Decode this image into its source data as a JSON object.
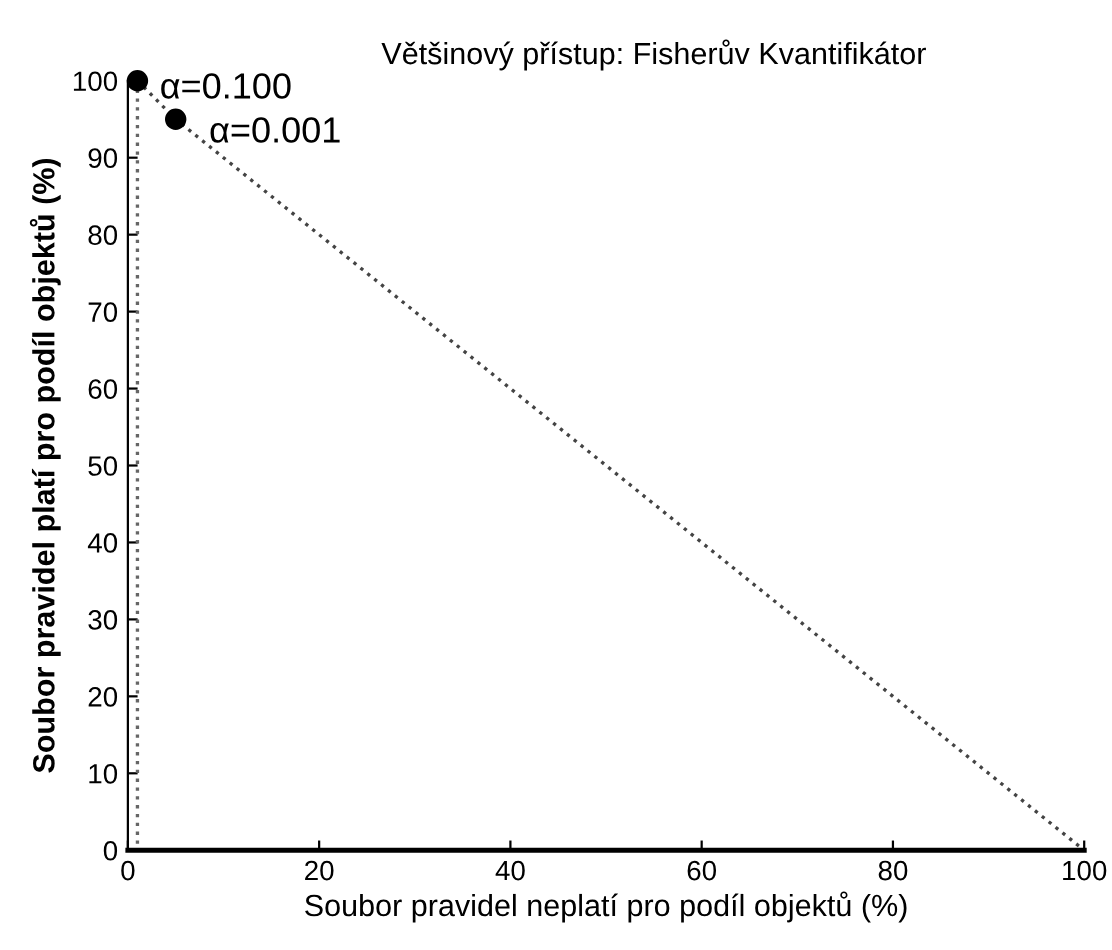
{
  "chart_data": {
    "type": "line",
    "title": "Většinový přístup: Fisherův Kvantifikátor",
    "xlabel": "Soubor pravidel neplatí pro podíl objektů (%)",
    "ylabel": "Soubor pravidel platí pro podíl objektů (%)",
    "series": [
      {
        "color": "#444444",
        "line_style": "dotted",
        "x": [
          1,
          5,
          20,
          40,
          60,
          80,
          100
        ],
        "values": [
          100,
          95,
          80,
          60,
          40,
          20,
          0
        ]
      },
      {
        "color": "#666666",
        "line_style": "dotted",
        "x": [
          1,
          1
        ],
        "values": [
          100,
          0
        ]
      },
      {
        "type": "scatter",
        "color": "#000000",
        "marker": "circle",
        "x": [
          1,
          5
        ],
        "values": [
          100,
          95
        ]
      }
    ],
    "annotations": [
      {
        "text": "α=0.100",
        "x": 1,
        "y": 100
      },
      {
        "text": "α=0.001",
        "x": 5,
        "y": 95
      }
    ],
    "xlim": [
      0,
      100
    ],
    "ylim": [
      0,
      100
    ],
    "xticks": [
      0,
      20,
      40,
      60,
      80,
      100
    ],
    "yticks": [
      0,
      10,
      20,
      30,
      40,
      50,
      60,
      70,
      80,
      90,
      100
    ],
    "grid": false,
    "legend": false
  }
}
